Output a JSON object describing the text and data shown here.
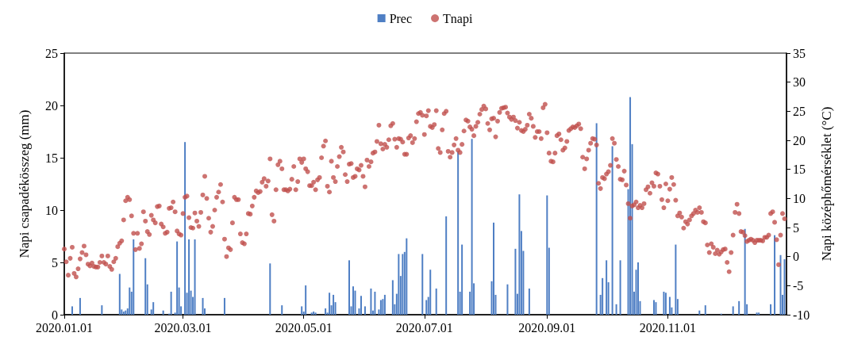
{
  "chart_data": {
    "type": "bar",
    "ylabel": "Napi csapadékösszeg (mm)",
    "y2label": "Napi középhőmérséklet (°C)",
    "xlim": [
      "2020-01-01",
      "2020-12-31"
    ],
    "xticks": [
      {
        "value": "2020-01-01",
        "label": "2020.01.01"
      },
      {
        "value": "2020-03-01",
        "label": "2020.03.01"
      },
      {
        "value": "2020-05-01",
        "label": "2020.05.01"
      },
      {
        "value": "2020-07-01",
        "label": "2020.07.01"
      },
      {
        "value": "2020-09-01",
        "label": "2020.09.01"
      },
      {
        "value": "2020-11-01",
        "label": "2020.11.01"
      }
    ],
    "ylim": [
      0,
      25
    ],
    "yticks": [
      0,
      5,
      10,
      15,
      20,
      25
    ],
    "y2lim": [
      -10,
      35
    ],
    "y2ticks": [
      -10,
      -5,
      0,
      5,
      10,
      15,
      20,
      25,
      30,
      35
    ],
    "legend": "top",
    "grid": false,
    "marker": "circle",
    "x": [
      "2020-01-01",
      "2020-01-02",
      "2020-01-03",
      "2020-01-04",
      "2020-01-05",
      "2020-01-06",
      "2020-01-07",
      "2020-01-08",
      "2020-01-09",
      "2020-01-10",
      "2020-01-11",
      "2020-01-12",
      "2020-01-13",
      "2020-01-14",
      "2020-01-15",
      "2020-01-16",
      "2020-01-17",
      "2020-01-18",
      "2020-01-19",
      "2020-01-20",
      "2020-01-21",
      "2020-01-22",
      "2020-01-23",
      "2020-01-24",
      "2020-01-25",
      "2020-01-26",
      "2020-01-27",
      "2020-01-28",
      "2020-01-29",
      "2020-01-30",
      "2020-01-31",
      "2020-02-01",
      "2020-02-02",
      "2020-02-03",
      "2020-02-04",
      "2020-02-05",
      "2020-02-06",
      "2020-02-07",
      "2020-02-08",
      "2020-02-09",
      "2020-02-10",
      "2020-02-11",
      "2020-02-12",
      "2020-02-13",
      "2020-02-14",
      "2020-02-15",
      "2020-02-16",
      "2020-02-17",
      "2020-02-18",
      "2020-02-19",
      "2020-02-20",
      "2020-02-21",
      "2020-02-22",
      "2020-02-23",
      "2020-02-24",
      "2020-02-25",
      "2020-02-26",
      "2020-02-27",
      "2020-02-28",
      "2020-02-29",
      "2020-03-01",
      "2020-03-02",
      "2020-03-03",
      "2020-03-04",
      "2020-03-05",
      "2020-03-06",
      "2020-03-07",
      "2020-03-08",
      "2020-03-09",
      "2020-03-10",
      "2020-03-11",
      "2020-03-12",
      "2020-03-13",
      "2020-03-14",
      "2020-03-15",
      "2020-03-16",
      "2020-03-17",
      "2020-03-18",
      "2020-03-19",
      "2020-03-20",
      "2020-03-21",
      "2020-03-22",
      "2020-03-23",
      "2020-03-24",
      "2020-03-25",
      "2020-03-26",
      "2020-03-27",
      "2020-03-28",
      "2020-03-29",
      "2020-03-30",
      "2020-03-31",
      "2020-04-01",
      "2020-04-02",
      "2020-04-03",
      "2020-04-04",
      "2020-04-05",
      "2020-04-06",
      "2020-04-07",
      "2020-04-08",
      "2020-04-09",
      "2020-04-10",
      "2020-04-11",
      "2020-04-12",
      "2020-04-13",
      "2020-04-14",
      "2020-04-15",
      "2020-04-16",
      "2020-04-17",
      "2020-04-18",
      "2020-04-19",
      "2020-04-20",
      "2020-04-21",
      "2020-04-22",
      "2020-04-23",
      "2020-04-24",
      "2020-04-25",
      "2020-04-26",
      "2020-04-27",
      "2020-04-28",
      "2020-04-29",
      "2020-04-30",
      "2020-05-01",
      "2020-05-02",
      "2020-05-03",
      "2020-05-04",
      "2020-05-05",
      "2020-05-06",
      "2020-05-07",
      "2020-05-08",
      "2020-05-09",
      "2020-05-10",
      "2020-05-11",
      "2020-05-12",
      "2020-05-13",
      "2020-05-14",
      "2020-05-15",
      "2020-05-16",
      "2020-05-17",
      "2020-05-18",
      "2020-05-19",
      "2020-05-20",
      "2020-05-21",
      "2020-05-22",
      "2020-05-23",
      "2020-05-24",
      "2020-05-25",
      "2020-05-26",
      "2020-05-27",
      "2020-05-28",
      "2020-05-29",
      "2020-05-30",
      "2020-05-31",
      "2020-06-01",
      "2020-06-02",
      "2020-06-03",
      "2020-06-04",
      "2020-06-05",
      "2020-06-06",
      "2020-06-07",
      "2020-06-08",
      "2020-06-09",
      "2020-06-10",
      "2020-06-11",
      "2020-06-12",
      "2020-06-13",
      "2020-06-14",
      "2020-06-15",
      "2020-06-16",
      "2020-06-17",
      "2020-06-18",
      "2020-06-19",
      "2020-06-20",
      "2020-06-21",
      "2020-06-22",
      "2020-06-23",
      "2020-06-24",
      "2020-06-25",
      "2020-06-26",
      "2020-06-27",
      "2020-06-28",
      "2020-06-29",
      "2020-06-30",
      "2020-07-01",
      "2020-07-02",
      "2020-07-03",
      "2020-07-04",
      "2020-07-05",
      "2020-07-06",
      "2020-07-07",
      "2020-07-08",
      "2020-07-09",
      "2020-07-10",
      "2020-07-11",
      "2020-07-12",
      "2020-07-13",
      "2020-07-14",
      "2020-07-15",
      "2020-07-16",
      "2020-07-17",
      "2020-07-18",
      "2020-07-19",
      "2020-07-20",
      "2020-07-21",
      "2020-07-22",
      "2020-07-23",
      "2020-07-24",
      "2020-07-25",
      "2020-07-26",
      "2020-07-27",
      "2020-07-28",
      "2020-07-29",
      "2020-07-30",
      "2020-07-31",
      "2020-08-01",
      "2020-08-02",
      "2020-08-03",
      "2020-08-04",
      "2020-08-05",
      "2020-08-06",
      "2020-08-07",
      "2020-08-08",
      "2020-08-09",
      "2020-08-10",
      "2020-08-11",
      "2020-08-12",
      "2020-08-13",
      "2020-08-14",
      "2020-08-15",
      "2020-08-16",
      "2020-08-17",
      "2020-08-18",
      "2020-08-19",
      "2020-08-20",
      "2020-08-21",
      "2020-08-22",
      "2020-08-23",
      "2020-08-24",
      "2020-08-25",
      "2020-08-26",
      "2020-08-27",
      "2020-08-28",
      "2020-08-29",
      "2020-08-30",
      "2020-08-31",
      "2020-09-01",
      "2020-09-02",
      "2020-09-03",
      "2020-09-04",
      "2020-09-05",
      "2020-09-06",
      "2020-09-07",
      "2020-09-08",
      "2020-09-09",
      "2020-09-10",
      "2020-09-11",
      "2020-09-12",
      "2020-09-13",
      "2020-09-14",
      "2020-09-15",
      "2020-09-16",
      "2020-09-17",
      "2020-09-18",
      "2020-09-19",
      "2020-09-20",
      "2020-09-21",
      "2020-09-22",
      "2020-09-23",
      "2020-09-24",
      "2020-09-25",
      "2020-09-26",
      "2020-09-27",
      "2020-09-28",
      "2020-09-29",
      "2020-09-30",
      "2020-10-01",
      "2020-10-02",
      "2020-10-03",
      "2020-10-04",
      "2020-10-05",
      "2020-10-06",
      "2020-10-07",
      "2020-10-08",
      "2020-10-09",
      "2020-10-10",
      "2020-10-11",
      "2020-10-12",
      "2020-10-13",
      "2020-10-14",
      "2020-10-15",
      "2020-10-16",
      "2020-10-17",
      "2020-10-18",
      "2020-10-19",
      "2020-10-20",
      "2020-10-21",
      "2020-10-22",
      "2020-10-23",
      "2020-10-24",
      "2020-10-25",
      "2020-10-26",
      "2020-10-27",
      "2020-10-28",
      "2020-10-29",
      "2020-10-30",
      "2020-10-31",
      "2020-11-01",
      "2020-11-02",
      "2020-11-03",
      "2020-11-04",
      "2020-11-05",
      "2020-11-06",
      "2020-11-07",
      "2020-11-08",
      "2020-11-09",
      "2020-11-10",
      "2020-11-11",
      "2020-11-12",
      "2020-11-13",
      "2020-11-14",
      "2020-11-15",
      "2020-11-16",
      "2020-11-17",
      "2020-11-18",
      "2020-11-19",
      "2020-11-20",
      "2020-11-21",
      "2020-11-22",
      "2020-11-23",
      "2020-11-24",
      "2020-11-25",
      "2020-11-26",
      "2020-11-27",
      "2020-11-28",
      "2020-11-29",
      "2020-11-30",
      "2020-12-01",
      "2020-12-02",
      "2020-12-03",
      "2020-12-04",
      "2020-12-05",
      "2020-12-06",
      "2020-12-07",
      "2020-12-08",
      "2020-12-09",
      "2020-12-10",
      "2020-12-11",
      "2020-12-12",
      "2020-12-13",
      "2020-12-14",
      "2020-12-15",
      "2020-12-16",
      "2020-12-17",
      "2020-12-18",
      "2020-12-19",
      "2020-12-20",
      "2020-12-21",
      "2020-12-22",
      "2020-12-23",
      "2020-12-24",
      "2020-12-25",
      "2020-12-26",
      "2020-12-27",
      "2020-12-28",
      "2020-12-29",
      "2020-12-30"
    ],
    "series": [
      {
        "name": "Prec",
        "color": "#4f7fc4",
        "x": [
          "2020-01-05",
          "2020-01-09",
          "2020-01-20",
          "2020-01-29",
          "2020-01-30",
          "2020-01-31",
          "2020-02-01",
          "2020-02-02",
          "2020-02-03",
          "2020-02-04",
          "2020-02-05",
          "2020-02-11",
          "2020-02-12",
          "2020-02-14",
          "2020-02-15",
          "2020-02-20",
          "2020-02-23",
          "2020-02-24",
          "2020-02-26",
          "2020-02-27",
          "2020-02-28",
          "2020-02-29",
          "2020-03-02",
          "2020-03-03",
          "2020-03-04",
          "2020-03-05",
          "2020-03-06",
          "2020-03-07",
          "2020-03-11",
          "2020-03-12",
          "2020-03-22",
          "2020-04-14",
          "2020-04-20",
          "2020-04-30",
          "2020-05-01",
          "2020-05-02",
          "2020-05-05",
          "2020-05-06",
          "2020-05-07",
          "2020-05-12",
          "2020-05-13",
          "2020-05-14",
          "2020-05-15",
          "2020-05-16",
          "2020-05-17",
          "2020-05-24",
          "2020-05-25",
          "2020-05-26",
          "2020-05-27",
          "2020-05-29",
          "2020-05-30",
          "2020-06-01",
          "2020-06-04",
          "2020-06-05",
          "2020-06-06",
          "2020-06-08",
          "2020-06-09",
          "2020-06-10",
          "2020-06-11",
          "2020-06-15",
          "2020-06-16",
          "2020-06-17",
          "2020-06-18",
          "2020-06-19",
          "2020-06-20",
          "2020-06-21",
          "2020-06-22",
          "2020-06-30",
          "2020-07-02",
          "2020-07-03",
          "2020-07-04",
          "2020-07-07",
          "2020-07-12",
          "2020-07-18",
          "2020-07-19",
          "2020-07-20",
          "2020-07-24",
          "2020-07-25",
          "2020-07-26",
          "2020-08-04",
          "2020-08-05",
          "2020-08-06",
          "2020-08-12",
          "2020-08-16",
          "2020-08-17",
          "2020-08-18",
          "2020-08-19",
          "2020-08-20",
          "2020-08-23",
          "2020-09-01",
          "2020-09-02",
          "2020-09-26",
          "2020-09-28",
          "2020-09-29",
          "2020-10-01",
          "2020-10-02",
          "2020-10-04",
          "2020-10-06",
          "2020-10-08",
          "2020-10-12",
          "2020-10-13",
          "2020-10-14",
          "2020-10-15",
          "2020-10-16",
          "2020-10-17",
          "2020-10-18",
          "2020-10-25",
          "2020-10-26",
          "2020-10-30",
          "2020-10-31",
          "2020-11-02",
          "2020-11-03",
          "2020-11-05",
          "2020-11-06",
          "2020-11-17",
          "2020-11-20",
          "2020-11-28",
          "2020-12-04",
          "2020-12-07",
          "2020-12-10",
          "2020-12-11",
          "2020-12-16",
          "2020-12-17",
          "2020-12-23",
          "2020-12-25",
          "2020-12-28",
          "2020-12-29",
          "2020-12-30"
        ],
        "values": [
          0.8,
          1.6,
          0.9,
          3.9,
          0.5,
          0.3,
          0.4,
          0.6,
          2.6,
          2.2,
          7.2,
          5.4,
          2.9,
          0.5,
          1.2,
          0.4,
          0.1,
          2.2,
          0.2,
          7.0,
          2.6,
          0.8,
          16.5,
          2.1,
          7.2,
          2.3,
          1.7,
          7.2,
          1.6,
          0.6,
          1.6,
          4.9,
          0.9,
          0.8,
          0.3,
          2.8,
          0.2,
          0.3,
          0.2,
          0.6,
          0.2,
          2.1,
          0.9,
          1.9,
          1.2,
          5.2,
          0.8,
          2.7,
          2.3,
          0.6,
          1.8,
          0.8,
          2.5,
          0.4,
          2.2,
          0.5,
          1.4,
          1.5,
          1.9,
          3.3,
          1.0,
          2.0,
          5.8,
          3.7,
          5.8,
          6.0,
          7.3,
          5.8,
          1.4,
          1.7,
          4.3,
          2.5,
          9.4,
          15.6,
          2.2,
          6.7,
          2.2,
          16.8,
          3.0,
          3.2,
          8.8,
          1.9,
          2.9,
          6.3,
          2.0,
          11.5,
          8.0,
          6.1,
          2.5,
          11.4,
          6.4,
          18.3,
          1.9,
          3.5,
          5.2,
          3.1,
          16.1,
          1.0,
          5.2,
          12.0,
          20.8,
          16.3,
          2.2,
          4.3,
          5.0,
          1.3,
          1.4,
          1.2,
          2.2,
          2.1,
          1.7,
          0.7,
          6.7,
          1.5,
          0.4,
          0.9,
          0.1,
          0.8,
          1.3,
          8.2,
          1.0,
          0.2,
          0.2,
          1.0,
          7.6,
          5.7,
          1.9,
          5.3
        ]
      },
      {
        "name": "Tnapi",
        "type": "scatter",
        "axis": "y2",
        "color": "#c0504d",
        "values": [
          1.3,
          -0.9,
          -3.2,
          -0.3,
          1.6,
          -2.9,
          -3.5,
          -2.1,
          -0.4,
          0.7,
          1.8,
          0.3,
          -1.3,
          -1.6,
          -1.1,
          -1.7,
          -1.8,
          -1.8,
          -1.0,
          0.1,
          -1.0,
          -1.3,
          0.1,
          -1.7,
          -2.2,
          -0.9,
          -0.3,
          1.7,
          2.3,
          2.7,
          6.3,
          9.6,
          10.2,
          9.8,
          7.0,
          4.0,
          1.2,
          4.0,
          1.4,
          2.2,
          7.7,
          6.1,
          4.3,
          3.8,
          7.1,
          6.3,
          5.8,
          8.6,
          8.7,
          5.6,
          5.1,
          4.0,
          4.2,
          8.3,
          8.4,
          9.4,
          7.7,
          4.4,
          3.9,
          3.7,
          7.4,
          10.2,
          10.4,
          6.7,
          5.0,
          4.9,
          7.5,
          6.1,
          5.2,
          7.6,
          10.6,
          13.8,
          10.0,
          6.6,
          4.2,
          5.2,
          8.0,
          10.2,
          11.1,
          12.4,
          9.4,
          3.0,
          0.0,
          1.5,
          1.2,
          5.8,
          10.2,
          9.8,
          9.8,
          3.9,
          2.4,
          2.2,
          3.9,
          7.4,
          7.3,
          8.7,
          10.2,
          11.3,
          11.0,
          11.2,
          12.8,
          13.4,
          12.1,
          13.0,
          16.8,
          7.2,
          6.1,
          11.5,
          15.8,
          16.4,
          15.1,
          11.5,
          11.5,
          11.3,
          11.6,
          13.3,
          15.5,
          11.5,
          12.9,
          16.8,
          16.2,
          16.8,
          15.1,
          14.6,
          12.2,
          12.2,
          12.8,
          11.5,
          13.2,
          13.6,
          17.0,
          19.0,
          19.9,
          12.1,
          11.1,
          16.4,
          13.6,
          12.9,
          15.5,
          17.2,
          18.8,
          18.0,
          14.1,
          12.9,
          15.9,
          16.0,
          13.6,
          13.8,
          15.1,
          14.9,
          15.7,
          13.8,
          12.0,
          16.6,
          15.5,
          16.3,
          17.8,
          18.0,
          19.8,
          22.6,
          19.4,
          18.5,
          19.3,
          18.8,
          20.1,
          22.5,
          22.9,
          20.2,
          18.8,
          20.3,
          20.2,
          19.7,
          17.6,
          17.6,
          20.4,
          20.8,
          19.6,
          20.3,
          23.2,
          24.6,
          24.8,
          24.3,
          21.0,
          24.2,
          25.1,
          22.4,
          22.2,
          22.7,
          25.1,
          18.6,
          17.9,
          21.8,
          24.6,
          25.0,
          18.1,
          17.1,
          17.9,
          19.2,
          20.3,
          18.3,
          17.9,
          19.3,
          21.6,
          23.5,
          23.3,
          22.3,
          21.9,
          20.8,
          22.4,
          23.1,
          24.5,
          25.3,
          25.9,
          25.4,
          22.9,
          21.8,
          23.7,
          23.8,
          20.6,
          23.3,
          24.8,
          25.5,
          25.6,
          25.7,
          24.7,
          24.0,
          23.6,
          24.0,
          23.4,
          22.1,
          23.1,
          21.7,
          21.5,
          21.9,
          22.6,
          24.5,
          23.8,
          22.4,
          20.5,
          21.5,
          21.5,
          20.3,
          25.6,
          26.2,
          21.3,
          17.8,
          16.4,
          16.3,
          17.8,
          20.8,
          21.1,
          20.1,
          18.3,
          18.7,
          19.8,
          21.7,
          22.0,
          22.3,
          22.2,
          22.5,
          22.8,
          22.0,
          17.1,
          15.1,
          16.8,
          18.3,
          19.5,
          20.3,
          20.2,
          19.2,
          12.6,
          11.7,
          13.6,
          13.4,
          14.2,
          14.6,
          15.7,
          20.3,
          19.5,
          16.7,
          15.5,
          13.3,
          13.2,
          14.7,
          12.3,
          9.1,
          6.6,
          8.7,
          8.9,
          9.4,
          8.4,
          8.8,
          8.4,
          9.1,
          11.5,
          12.0,
          10.9,
          12.7,
          12.1,
          14.4,
          14.2,
          12.1,
          9.8,
          8.4,
          12.5,
          9.6,
          11.6,
          13.6,
          12.4,
          9.7,
          7.0,
          7.5,
          6.8,
          4.9,
          6.0,
          5.6,
          6.3,
          7.0,
          7.4,
          8.0,
          7.6,
          8.4,
          7.6,
          6.0,
          5.8,
          2.0,
          0.7,
          2.2,
          1.6,
          0.5,
          1.1,
          0.4,
          0.8,
          1.2,
          1.3,
          -1.0,
          -2.6,
          0.7,
          3.7,
          7.6,
          9.0,
          7.4,
          4.3,
          4.2,
          3.6,
          2.6,
          2.8,
          3.0,
          2.8,
          2.4,
          2.8,
          2.8,
          2.8,
          2.7,
          3.3,
          3.3,
          3.7,
          7.4,
          7.7,
          5.9,
          2.9,
          -1.4,
          3.7,
          7.4,
          6.5
        ]
      }
    ]
  }
}
